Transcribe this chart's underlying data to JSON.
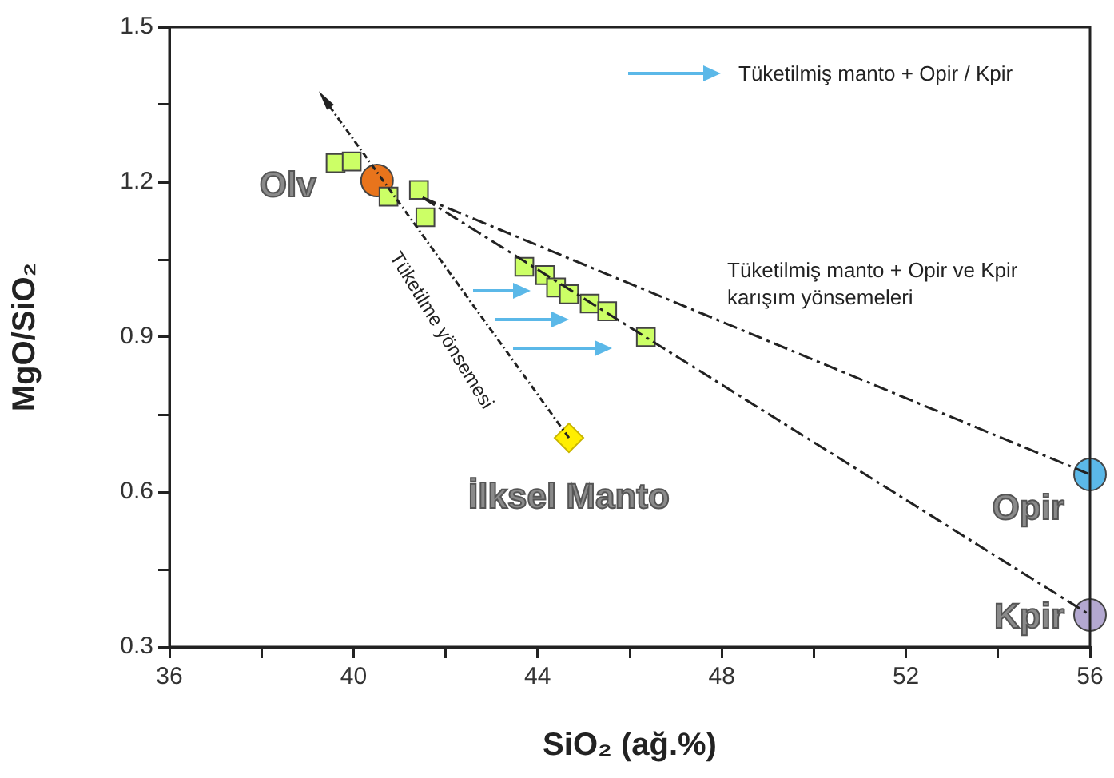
{
  "chart_data": {
    "type": "scatter",
    "xlabel": "SiO₂ (ağ.%)",
    "ylabel": "MgO/SiO₂",
    "xlim": [
      36,
      56
    ],
    "xticks": [
      36,
      {
        "value": 38,
        "label": null
      },
      40,
      {
        "value": 42,
        "label": null
      },
      44,
      {
        "value": 46,
        "label": null
      },
      48,
      {
        "value": 50,
        "label": null
      },
      52,
      {
        "value": 54,
        "label": null
      },
      56
    ],
    "ylim": [
      0.3,
      1.5
    ],
    "yticks": [
      0.3,
      {
        "value": 0.45,
        "label": null
      },
      0.6,
      {
        "value": 0.75,
        "label": null
      },
      0.9,
      {
        "value": 1.05,
        "label": null
      },
      1.2,
      {
        "value": 1.35,
        "label": null
      },
      1.5
    ],
    "grid": false,
    "series": [
      {
        "type": "line",
        "color": "#222222",
        "line_style": "dashed",
        "x": [
          41.5,
          56
        ],
        "values": [
          1.17,
          0.634
        ]
      },
      {
        "type": "line",
        "color": "#222222",
        "line_style": "dashed",
        "x": [
          41.5,
          56
        ],
        "values": [
          1.17,
          0.362
        ]
      },
      {
        "type": "line",
        "color": "#222222",
        "line_style": "dotted",
        "x": [
          44.68,
          39.37
        ],
        "values": [
          0.705,
          1.36
        ]
      },
      {
        "color": "#ccff66",
        "marker": "square",
        "x": [
          39.61,
          39.96,
          40.76,
          41.42,
          41.56,
          43.71,
          44.16,
          44.4,
          44.68,
          45.13,
          45.51,
          46.35
        ],
        "values": [
          1.237,
          1.24,
          1.172,
          1.185,
          1.132,
          1.036,
          1.02,
          0.996,
          0.983,
          0.965,
          0.95,
          0.9
        ]
      },
      {
        "name": "Olv",
        "color": "#e8741c",
        "marker": "circle",
        "x": [
          40.51
        ],
        "values": [
          1.203
        ]
      },
      {
        "name": "İlksel Manto",
        "color": "#ffee00",
        "marker": "diamond",
        "x": [
          44.68
        ],
        "values": [
          0.705
        ]
      },
      {
        "name": "Opir",
        "color": "#5bb8e8",
        "marker": "circle",
        "x": [
          56
        ],
        "values": [
          0.634
        ]
      },
      {
        "name": "Kpir",
        "color": "#b3a8d0",
        "marker": "circle",
        "x": [
          56
        ],
        "values": [
          0.362
        ]
      }
    ],
    "annotations": [
      "Tüketilmiş manto + Opir / Kpir",
      "Tüketilme yönsemesi",
      "Tüketilmiş manto + Opir ve Kpir karışım yönsemeleri"
    ]
  }
}
